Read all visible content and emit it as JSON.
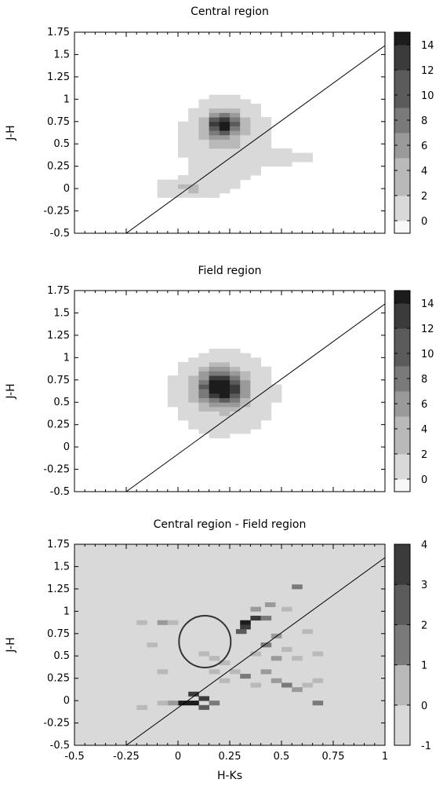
{
  "chart_data": [
    {
      "type": "heatmap",
      "title": "Central region",
      "xlabel": "",
      "ylabel": "J-H",
      "xlim": [
        -0.5,
        1.0
      ],
      "ylim": [
        -0.5,
        1.75
      ],
      "xticks": [
        -0.5,
        -0.25,
        0,
        0.25,
        0.5,
        0.75,
        1
      ],
      "yticks": [
        "1.75",
        "1.5",
        "1.25",
        "1",
        "0.75",
        "0.5",
        "0.25",
        "0",
        "-0.25",
        "-0.5"
      ],
      "colorbar": {
        "range": [
          -1,
          15
        ],
        "ticks": [
          "14",
          "12",
          "10",
          "8",
          "6",
          "4",
          "2",
          "0"
        ]
      },
      "line": {
        "x": [
          -0.25,
          1.0
        ],
        "y": [
          -0.5,
          1.6
        ]
      },
      "blobs": [
        {
          "x": 0.22,
          "y": 0.72,
          "sx": 0.05,
          "sy": 0.09,
          "amp": 14.5
        },
        {
          "x": 0.23,
          "y": 0.55,
          "sx": 0.13,
          "sy": 0.3,
          "amp": 2.5
        },
        {
          "x": 0.05,
          "y": 0.0,
          "sx": 0.1,
          "sy": 0.07,
          "amp": 2.5
        },
        {
          "x": 0.5,
          "y": 0.35,
          "sx": 0.12,
          "sy": 0.06,
          "amp": 1.2
        }
      ]
    },
    {
      "type": "heatmap",
      "title": "Field region",
      "xlabel": "",
      "ylabel": "J-H",
      "xlim": [
        -0.5,
        1.0
      ],
      "ylim": [
        -0.5,
        1.75
      ],
      "xticks": [
        -0.5,
        -0.25,
        0,
        0.25,
        0.5,
        0.75,
        1
      ],
      "yticks": [
        "1.75",
        "1.5",
        "1.25",
        "1",
        "0.75",
        "0.5",
        "0.25",
        "0",
        "-0.25",
        "-0.5"
      ],
      "colorbar": {
        "range": [
          -1,
          15
        ],
        "ticks": [
          "14",
          "12",
          "10",
          "8",
          "6",
          "4",
          "2",
          "0"
        ]
      },
      "line": {
        "x": [
          -0.25,
          1.0
        ],
        "y": [
          -0.5,
          1.6
        ]
      },
      "blobs": [
        {
          "x": 0.21,
          "y": 0.67,
          "sx": 0.07,
          "sy": 0.12,
          "amp": 16.5
        },
        {
          "x": 0.22,
          "y": 0.6,
          "sx": 0.16,
          "sy": 0.3,
          "amp": 2.2
        }
      ]
    },
    {
      "type": "heatmap",
      "title": "Central region - Field region",
      "xlabel": "H-Ks",
      "ylabel": "J-H",
      "xlim": [
        -0.5,
        1.0
      ],
      "ylim": [
        -0.5,
        1.75
      ],
      "xticks": [
        "-0.5",
        "-0.25",
        "0",
        "0.25",
        "0.5",
        "0.75",
        "1"
      ],
      "yticks": [
        "1.75",
        "1.5",
        "1.25",
        "1",
        "0.75",
        "0.5",
        "0.25",
        "0",
        "-0.25",
        "-0.5"
      ],
      "colorbar": {
        "range": [
          -1,
          4
        ],
        "ticks": [
          "4",
          "3",
          "2",
          "1",
          "0",
          "-1"
        ]
      },
      "line": {
        "x": [
          -0.25,
          1.0
        ],
        "y": [
          -0.5,
          1.6
        ]
      },
      "circle": {
        "x": 0.13,
        "y": 0.66,
        "r": 0.25
      },
      "background_value": -0.55,
      "cells": [
        [
          0.0,
          -0.05,
          3.8
        ],
        [
          0.05,
          -0.05,
          3.8
        ],
        [
          0.1,
          0.0,
          3.6
        ],
        [
          0.05,
          0.05,
          3.2
        ],
        [
          0.1,
          -0.1,
          2.5
        ],
        [
          0.15,
          -0.05,
          1.5
        ],
        [
          -0.05,
          -0.05,
          1.2
        ],
        [
          -0.1,
          -0.05,
          0.6
        ],
        [
          -0.2,
          -0.1,
          0.2
        ],
        [
          0.3,
          0.85,
          3.8
        ],
        [
          0.35,
          0.9,
          3.6
        ],
        [
          0.3,
          0.8,
          3.2
        ],
        [
          0.28,
          0.75,
          2.6
        ],
        [
          0.4,
          0.9,
          1.5
        ],
        [
          0.35,
          1.0,
          1.2
        ],
        [
          0.42,
          1.05,
          0.8
        ],
        [
          0.5,
          1.0,
          0.2
        ],
        [
          0.55,
          1.25,
          1.5
        ],
        [
          0.4,
          0.6,
          2.2
        ],
        [
          0.45,
          0.7,
          0.8
        ],
        [
          0.35,
          0.5,
          0.6
        ],
        [
          0.45,
          0.45,
          1.0
        ],
        [
          0.5,
          0.55,
          0.3
        ],
        [
          0.55,
          0.45,
          0.2
        ],
        [
          0.3,
          0.25,
          1.5
        ],
        [
          0.4,
          0.3,
          1.2
        ],
        [
          0.45,
          0.2,
          0.8
        ],
        [
          0.5,
          0.15,
          2.2
        ],
        [
          0.55,
          0.1,
          1.0
        ],
        [
          0.6,
          0.15,
          0.4
        ],
        [
          0.65,
          0.2,
          0.2
        ],
        [
          0.25,
          0.3,
          0.3
        ],
        [
          0.2,
          0.4,
          0.2
        ],
        [
          0.65,
          -0.05,
          2.0
        ],
        [
          0.35,
          0.15,
          0.5
        ],
        [
          0.2,
          0.2,
          0.4
        ],
        [
          0.15,
          0.3,
          0.2
        ],
        [
          0.6,
          0.75,
          0.2
        ],
        [
          0.65,
          0.5,
          0.3
        ],
        [
          -0.2,
          0.85,
          0.3
        ],
        [
          -0.1,
          0.85,
          1.4
        ],
        [
          -0.05,
          0.85,
          0.5
        ],
        [
          -0.15,
          0.6,
          0.2
        ],
        [
          -0.1,
          0.3,
          0.3
        ],
        [
          0.1,
          0.5,
          0.2
        ],
        [
          0.15,
          0.45,
          0.3
        ]
      ]
    }
  ]
}
